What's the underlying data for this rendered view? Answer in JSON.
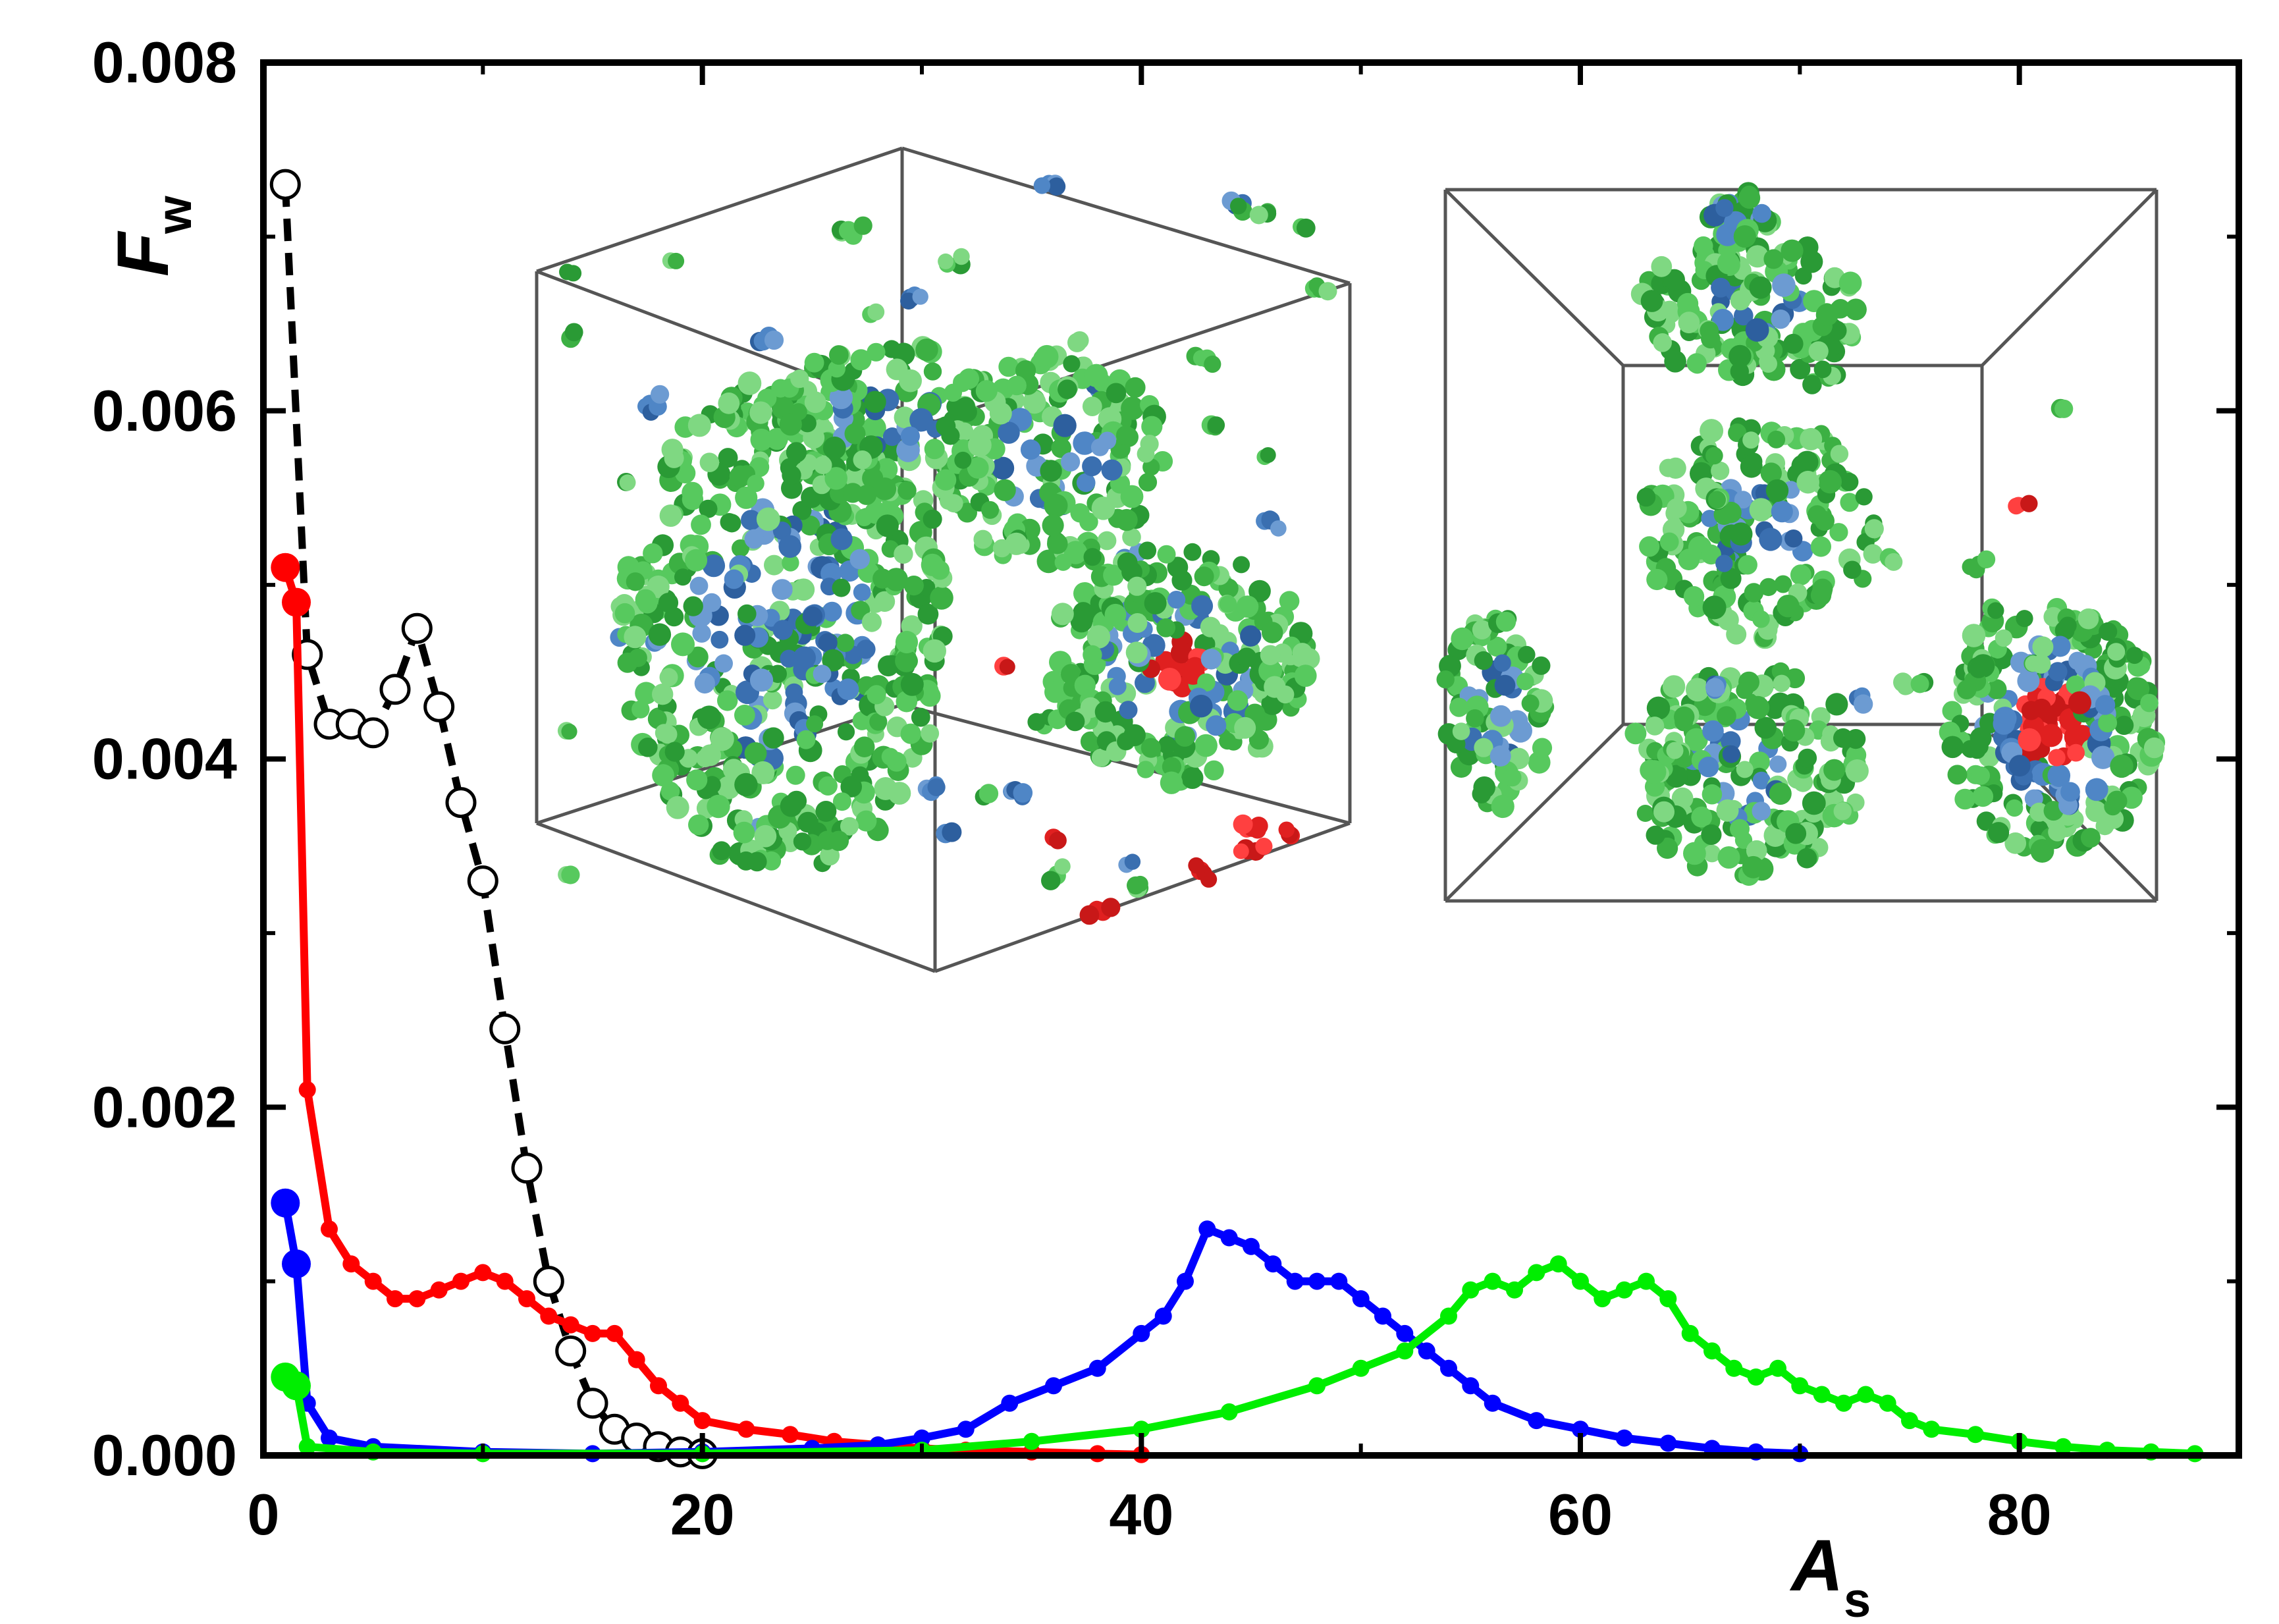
{
  "chart_data": {
    "type": "line",
    "xlabel": "A",
    "xlabel_sub": "s",
    "ylabel": "F",
    "ylabel_sub": "w",
    "xlim": [
      0,
      90
    ],
    "ylim": [
      0,
      0.008
    ],
    "xticks": [
      0,
      20,
      40,
      60,
      80
    ],
    "xtick_labels": [
      "0",
      "20",
      "40",
      "60",
      "80"
    ],
    "yticks": [
      0,
      0.002,
      0.004,
      0.006,
      0.008
    ],
    "ytick_labels": [
      "0.000",
      "0.002",
      "0.004",
      "0.006",
      "0.008"
    ],
    "grid": false,
    "series": [
      {
        "color": "#000000",
        "style": "dashed-open-circles",
        "points": [
          [
            1,
            0.0073
          ],
          [
            2,
            0.0046
          ],
          [
            3,
            0.0042
          ],
          [
            4,
            0.0042
          ],
          [
            5,
            0.00415
          ],
          [
            6,
            0.0044
          ],
          [
            7,
            0.00475
          ],
          [
            8,
            0.0043
          ],
          [
            9,
            0.00375
          ],
          [
            10,
            0.0033
          ],
          [
            11,
            0.00245
          ],
          [
            12,
            0.00165
          ],
          [
            13,
            0.001
          ],
          [
            14,
            0.0006
          ],
          [
            15,
            0.0003
          ],
          [
            16,
            0.00015
          ],
          [
            17,
            0.0001
          ],
          [
            18,
            5e-05
          ],
          [
            19,
            2e-05
          ],
          [
            20,
            1e-05
          ]
        ]
      },
      {
        "color": "#ff0000",
        "style": "solid-filled",
        "points": [
          [
            1,
            0.0051
          ],
          [
            1.5,
            0.0049
          ],
          [
            2,
            0.0021
          ],
          [
            3,
            0.0013
          ],
          [
            4,
            0.0011
          ],
          [
            5,
            0.001
          ],
          [
            6,
            0.0009
          ],
          [
            7,
            0.0009
          ],
          [
            8,
            0.00095
          ],
          [
            9,
            0.001
          ],
          [
            10,
            0.00105
          ],
          [
            11,
            0.001
          ],
          [
            12,
            0.0009
          ],
          [
            13,
            0.0008
          ],
          [
            14,
            0.00075
          ],
          [
            15,
            0.0007
          ],
          [
            16,
            0.0007
          ],
          [
            17,
            0.00055
          ],
          [
            18,
            0.0004
          ],
          [
            19,
            0.0003
          ],
          [
            20,
            0.0002
          ],
          [
            22,
            0.00015
          ],
          [
            24,
            0.00012
          ],
          [
            26,
            8e-05
          ],
          [
            28,
            6e-05
          ],
          [
            30,
            4e-05
          ],
          [
            32,
            3e-05
          ],
          [
            35,
            2e-05
          ],
          [
            38,
            1e-05
          ],
          [
            40,
            5e-06
          ]
        ]
      },
      {
        "color": "#0000ff",
        "style": "solid-filled",
        "points": [
          [
            1,
            0.00145
          ],
          [
            1.5,
            0.0011
          ],
          [
            2,
            0.0003
          ],
          [
            3,
            0.0001
          ],
          [
            5,
            5e-05
          ],
          [
            10,
            2e-05
          ],
          [
            15,
            1e-05
          ],
          [
            20,
            2e-05
          ],
          [
            25,
            4e-05
          ],
          [
            28,
            6e-05
          ],
          [
            30,
            0.0001
          ],
          [
            32,
            0.00015
          ],
          [
            34,
            0.0003
          ],
          [
            36,
            0.0004
          ],
          [
            38,
            0.0005
          ],
          [
            40,
            0.0007
          ],
          [
            41,
            0.0008
          ],
          [
            42,
            0.001
          ],
          [
            43,
            0.0013
          ],
          [
            44,
            0.00125
          ],
          [
            45,
            0.0012
          ],
          [
            46,
            0.0011
          ],
          [
            47,
            0.001
          ],
          [
            48,
            0.001
          ],
          [
            49,
            0.001
          ],
          [
            50,
            0.0009
          ],
          [
            51,
            0.0008
          ],
          [
            52,
            0.0007
          ],
          [
            53,
            0.0006
          ],
          [
            54,
            0.0005
          ],
          [
            55,
            0.0004
          ],
          [
            56,
            0.0003
          ],
          [
            58,
            0.0002
          ],
          [
            60,
            0.00015
          ],
          [
            62,
            0.0001
          ],
          [
            64,
            7e-05
          ],
          [
            66,
            4e-05
          ],
          [
            68,
            2e-05
          ],
          [
            70,
            1e-05
          ]
        ]
      },
      {
        "color": "#00ee00",
        "style": "solid-filled",
        "points": [
          [
            1,
            0.00045
          ],
          [
            1.5,
            0.0004
          ],
          [
            2,
            5e-05
          ],
          [
            5,
            2e-05
          ],
          [
            10,
            1e-05
          ],
          [
            20,
            1e-05
          ],
          [
            30,
            3e-05
          ],
          [
            35,
            8e-05
          ],
          [
            40,
            0.00015
          ],
          [
            44,
            0.00025
          ],
          [
            48,
            0.0004
          ],
          [
            50,
            0.0005
          ],
          [
            52,
            0.0006
          ],
          [
            54,
            0.0008
          ],
          [
            55,
            0.00095
          ],
          [
            56,
            0.001
          ],
          [
            57,
            0.00095
          ],
          [
            58,
            0.00105
          ],
          [
            59,
            0.0011
          ],
          [
            60,
            0.001
          ],
          [
            61,
            0.0009
          ],
          [
            62,
            0.00095
          ],
          [
            63,
            0.001
          ],
          [
            64,
            0.0009
          ],
          [
            65,
            0.0007
          ],
          [
            66,
            0.0006
          ],
          [
            67,
            0.0005
          ],
          [
            68,
            0.00045
          ],
          [
            69,
            0.0005
          ],
          [
            70,
            0.0004
          ],
          [
            71,
            0.00035
          ],
          [
            72,
            0.0003
          ],
          [
            73,
            0.00035
          ],
          [
            74,
            0.0003
          ],
          [
            75,
            0.0002
          ],
          [
            76,
            0.00015
          ],
          [
            78,
            0.00012
          ],
          [
            80,
            8e-05
          ],
          [
            82,
            5e-05
          ],
          [
            84,
            3e-05
          ],
          [
            86,
            2e-05
          ],
          [
            88,
            1e-05
          ]
        ]
      }
    ]
  },
  "insets": [
    {
      "kind": "simulation-box-perspective"
    },
    {
      "kind": "simulation-box-front-view"
    }
  ],
  "colors": {
    "axis": "#000000",
    "box_edge": "#555555",
    "bead_green": "#3cb043",
    "bead_blue": "#3a6fb0",
    "bead_red": "#e02020"
  }
}
